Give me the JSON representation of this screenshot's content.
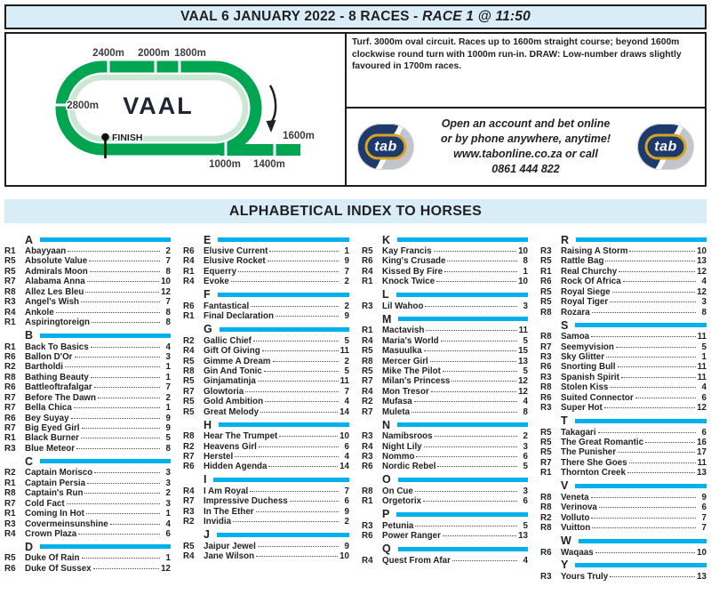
{
  "header": {
    "title_main": "VAAL 6 JANUARY 2022 - 8 RACES - ",
    "title_race": "RACE 1 @ 11:50"
  },
  "course_info": "Turf. 3000m oval circuit. Races up to 1600m straight course; beyond 1600m clockwise round turn with 1000m run-in. DRAW: Low-number draws slightly favoured in 1700m races.",
  "track": {
    "name": "VAAL",
    "finish": "FINISH",
    "m2400": "2400m",
    "m2000": "2000m",
    "m1800": "1800m",
    "m2800": "2800m",
    "m1600": "1600m",
    "m1000": "1000m",
    "m1400": "1400m"
  },
  "tab_promo": {
    "logo": "tab",
    "line1": "Open an account and bet online",
    "line2": "or by phone anywhere, anytime!",
    "line3": "www.tabonline.co.za or call",
    "line4": "0861 444 822"
  },
  "index": {
    "title": "ALPHABETICAL INDEX TO HORSES",
    "columns": [
      [
        {
          "letter": "A",
          "entries": [
            {
              "r": "R1",
              "n": "Abayyaan",
              "p": "2"
            },
            {
              "r": "R5",
              "n": "Absolute Value",
              "p": "7"
            },
            {
              "r": "R5",
              "n": "Admirals Moon",
              "p": "8"
            },
            {
              "r": "R7",
              "n": "Alabama Anna",
              "p": "10"
            },
            {
              "r": "R8",
              "n": "Allez Les Bleu",
              "p": "12"
            },
            {
              "r": "R3",
              "n": "Angel's Wish",
              "p": "7"
            },
            {
              "r": "R4",
              "n": "Ankole",
              "p": "8"
            },
            {
              "r": "R1",
              "n": "Aspiringtoreign",
              "p": "8"
            }
          ]
        },
        {
          "letter": "B",
          "entries": [
            {
              "r": "R1",
              "n": "Back To Basics",
              "p": "4"
            },
            {
              "r": "R6",
              "n": "Ballon D'Or",
              "p": "3"
            },
            {
              "r": "R2",
              "n": "Bartholdi",
              "p": "1"
            },
            {
              "r": "R8",
              "n": "Bathing Beauty",
              "p": "1"
            },
            {
              "r": "R6",
              "n": "Battleoftrafalgar",
              "p": "7"
            },
            {
              "r": "R7",
              "n": "Before The Dawn",
              "p": "2"
            },
            {
              "r": "R7",
              "n": "Bella Chica",
              "p": "1"
            },
            {
              "r": "R6",
              "n": "Bey Suyay",
              "p": "9"
            },
            {
              "r": "R7",
              "n": "Big Eyed Girl",
              "p": "9"
            },
            {
              "r": "R1",
              "n": "Black Burner",
              "p": "5"
            },
            {
              "r": "R3",
              "n": "Blue Meteor",
              "p": "8"
            }
          ]
        },
        {
          "letter": "C",
          "entries": [
            {
              "r": "R2",
              "n": "Captain Morisco",
              "p": "3"
            },
            {
              "r": "R1",
              "n": "Captain Persia",
              "p": "3"
            },
            {
              "r": "R8",
              "n": "Captain's Run",
              "p": "2"
            },
            {
              "r": "R7",
              "n": "Cold Fact",
              "p": "3"
            },
            {
              "r": "R1",
              "n": "Coming In Hot",
              "p": "1"
            },
            {
              "r": "R3",
              "n": "Covermeinsunshine",
              "p": "4"
            },
            {
              "r": "R4",
              "n": "Crown Plaza",
              "p": "6"
            }
          ]
        },
        {
          "letter": "D",
          "entries": [
            {
              "r": "R5",
              "n": "Duke Of Rain",
              "p": "1"
            },
            {
              "r": "R6",
              "n": "Duke Of Sussex",
              "p": "12"
            }
          ]
        }
      ],
      [
        {
          "letter": "E",
          "entries": [
            {
              "r": "R6",
              "n": "Elusive Current",
              "p": "1"
            },
            {
              "r": "R4",
              "n": "Elusive Rocket",
              "p": "9"
            },
            {
              "r": "R1",
              "n": "Equerry",
              "p": "7"
            },
            {
              "r": "R4",
              "n": "Evoke",
              "p": "2"
            }
          ]
        },
        {
          "letter": "F",
          "entries": [
            {
              "r": "R6",
              "n": "Fantastical",
              "p": "2"
            },
            {
              "r": "R1",
              "n": "Final Declaration",
              "p": "9"
            }
          ]
        },
        {
          "letter": "G",
          "entries": [
            {
              "r": "R2",
              "n": "Gallic Chief",
              "p": "5"
            },
            {
              "r": "R4",
              "n": "Gift Of Giving",
              "p": "11"
            },
            {
              "r": "R5",
              "n": "Gimme A Dream",
              "p": "2"
            },
            {
              "r": "R8",
              "n": "Gin And Tonic",
              "p": "5"
            },
            {
              "r": "R5",
              "n": "Ginjamatinja",
              "p": "11"
            },
            {
              "r": "R7",
              "n": "Glowtoria",
              "p": "7"
            },
            {
              "r": "R5",
              "n": "Gold Ambition",
              "p": "4"
            },
            {
              "r": "R5",
              "n": "Great Melody",
              "p": "14"
            }
          ]
        },
        {
          "letter": "H",
          "entries": [
            {
              "r": "R8",
              "n": "Hear The Trumpet",
              "p": "10"
            },
            {
              "r": "R2",
              "n": "Heavens Girl",
              "p": "6"
            },
            {
              "r": "R7",
              "n": "Herstel",
              "p": "4"
            },
            {
              "r": "R6",
              "n": "Hidden Agenda",
              "p": "14"
            }
          ]
        },
        {
          "letter": "I",
          "entries": [
            {
              "r": "R4",
              "n": "I Am Royal",
              "p": "7"
            },
            {
              "r": "R7",
              "n": "Impressive Duchess",
              "p": "6"
            },
            {
              "r": "R3",
              "n": "In The Ether",
              "p": "9"
            },
            {
              "r": "R2",
              "n": "Invidia",
              "p": "2"
            }
          ]
        },
        {
          "letter": "J",
          "entries": [
            {
              "r": "R5",
              "n": "Jaipur Jewel",
              "p": "9"
            },
            {
              "r": "R4",
              "n": "Jane Wilson",
              "p": "10"
            }
          ]
        }
      ],
      [
        {
          "letter": "K",
          "entries": [
            {
              "r": "R5",
              "n": "Kay Francis",
              "p": "10"
            },
            {
              "r": "R6",
              "n": "King's Crusade",
              "p": "8"
            },
            {
              "r": "R4",
              "n": "Kissed By Fire",
              "p": "1"
            },
            {
              "r": "R1",
              "n": "Knock Twice",
              "p": "10"
            }
          ]
        },
        {
          "letter": "L",
          "entries": [
            {
              "r": "R3",
              "n": "Lil Wahoo",
              "p": "3"
            }
          ]
        },
        {
          "letter": "M",
          "entries": [
            {
              "r": "R1",
              "n": "Mactavish",
              "p": "11"
            },
            {
              "r": "R4",
              "n": "Maria's World",
              "p": "5"
            },
            {
              "r": "R5",
              "n": "Masuulka",
              "p": "15"
            },
            {
              "r": "R8",
              "n": "Mercer Girl",
              "p": "13"
            },
            {
              "r": "R5",
              "n": "Mike The Pilot",
              "p": "5"
            },
            {
              "r": "R7",
              "n": "Milan's Princess",
              "p": "12"
            },
            {
              "r": "R4",
              "n": "Mon Tresor",
              "p": "12"
            },
            {
              "r": "R2",
              "n": "Mufasa",
              "p": "4"
            },
            {
              "r": "R7",
              "n": "Muleta",
              "p": "8"
            }
          ]
        },
        {
          "letter": "N",
          "entries": [
            {
              "r": "R3",
              "n": "Namibsroos",
              "p": "2"
            },
            {
              "r": "R4",
              "n": "Night Lily",
              "p": "3"
            },
            {
              "r": "R3",
              "n": "Nommo",
              "p": "6"
            },
            {
              "r": "R6",
              "n": "Nordic Rebel",
              "p": "5"
            }
          ]
        },
        {
          "letter": "O",
          "entries": [
            {
              "r": "R8",
              "n": "On Cue",
              "p": "3"
            },
            {
              "r": "R1",
              "n": "Orgetorix",
              "p": "6"
            }
          ]
        },
        {
          "letter": "P",
          "entries": [
            {
              "r": "R3",
              "n": "Petunia",
              "p": "5"
            },
            {
              "r": "R6",
              "n": "Power Ranger",
              "p": "13"
            }
          ]
        },
        {
          "letter": "Q",
          "entries": [
            {
              "r": "R4",
              "n": "Quest From Afar",
              "p": "4"
            }
          ]
        }
      ],
      [
        {
          "letter": "R",
          "entries": [
            {
              "r": "R3",
              "n": "Raising A Storm",
              "p": "10"
            },
            {
              "r": "R5",
              "n": "Rattle Bag",
              "p": "13"
            },
            {
              "r": "R1",
              "n": "Real Churchy",
              "p": "12"
            },
            {
              "r": "R6",
              "n": "Rock Of Africa",
              "p": "4"
            },
            {
              "r": "R5",
              "n": "Royal Siege",
              "p": "12"
            },
            {
              "r": "R5",
              "n": "Royal Tiger",
              "p": "3"
            },
            {
              "r": "R8",
              "n": "Rozara",
              "p": "8"
            }
          ]
        },
        {
          "letter": "S",
          "entries": [
            {
              "r": "R8",
              "n": "Samoa",
              "p": "11"
            },
            {
              "r": "R7",
              "n": "Seemyvision",
              "p": "5"
            },
            {
              "r": "R3",
              "n": "Sky Glitter",
              "p": "1"
            },
            {
              "r": "R6",
              "n": "Snorting Bull",
              "p": "11"
            },
            {
              "r": "R3",
              "n": "Spanish Spirit",
              "p": "11"
            },
            {
              "r": "R8",
              "n": "Stolen Kiss",
              "p": "4"
            },
            {
              "r": "R6",
              "n": "Suited Connector",
              "p": "6"
            },
            {
              "r": "R3",
              "n": "Super Hot",
              "p": "12"
            }
          ]
        },
        {
          "letter": "T",
          "entries": [
            {
              "r": "R5",
              "n": "Takagari",
              "p": "6"
            },
            {
              "r": "R5",
              "n": "The Great Romantic",
              "p": "16"
            },
            {
              "r": "R5",
              "n": "The Punisher",
              "p": "17"
            },
            {
              "r": "R7",
              "n": "There She Goes",
              "p": "11"
            },
            {
              "r": "R1",
              "n": "Thornton Creek",
              "p": "13"
            }
          ]
        },
        {
          "letter": "V",
          "entries": [
            {
              "r": "R8",
              "n": "Veneta",
              "p": "9"
            },
            {
              "r": "R8",
              "n": "Verinova",
              "p": "6"
            },
            {
              "r": "R2",
              "n": "Volluto",
              "p": "7"
            },
            {
              "r": "R8",
              "n": "Vuitton",
              "p": "7"
            }
          ]
        },
        {
          "letter": "W",
          "entries": [
            {
              "r": "R6",
              "n": "Waqaas",
              "p": "10"
            }
          ]
        },
        {
          "letter": "Y",
          "entries": [
            {
              "r": "R3",
              "n": "Yours Truly",
              "p": "13"
            }
          ]
        }
      ]
    ]
  },
  "colors": {
    "panel_blue": "#d8edf7",
    "section_bar_cyan": "#00b1ee",
    "track_green": "#00a551",
    "track_inner_green": "#cde7d5",
    "tab_navy": "#1d3a6d",
    "tab_gold": "#d9a41f"
  }
}
